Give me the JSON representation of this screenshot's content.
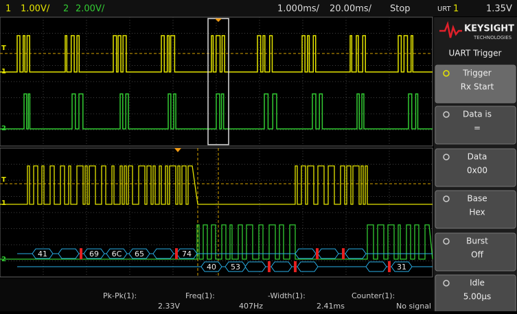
{
  "top_bar": {
    "ch1": "1",
    "ch1_scale": "1.00V/",
    "ch2": "2",
    "ch2_scale": "2.00V/",
    "zoom_time": "1.000ms/",
    "main_time": "20.00ms/",
    "run_state": "Stop",
    "trigger_source": "URT",
    "trigger_channel": "1",
    "trigger_level": "1.35V"
  },
  "channel_markers": {
    "trigger": "T",
    "ch1": "1",
    "ch2": "2"
  },
  "panel": {
    "brand": "KEYSIGHT",
    "brand_sub": "TECHNOLOGIES",
    "title": "UART Trigger",
    "softkeys": [
      {
        "label": "Trigger",
        "value": "Rx Start"
      },
      {
        "label": "Data is",
        "value": "="
      },
      {
        "label": "Data",
        "value": "0x00"
      },
      {
        "label": "Base",
        "value": "Hex"
      },
      {
        "label": "Burst",
        "value": "Off"
      },
      {
        "label": "Idle",
        "value": "5.00µs"
      }
    ]
  },
  "decode": {
    "row1": [
      "41",
      "69",
      "6C",
      "65",
      "74"
    ],
    "row2": [
      "40",
      "53",
      "31"
    ]
  },
  "measurements": [
    {
      "label": "Pk-Pk(1):",
      "value": "2.33V"
    },
    {
      "label": "Freq(1):",
      "value": "407Hz"
    },
    {
      "label": "-Width(1):",
      "value": "2.41ms"
    },
    {
      "label": "Counter(1):",
      "value": "No signal"
    }
  ]
}
